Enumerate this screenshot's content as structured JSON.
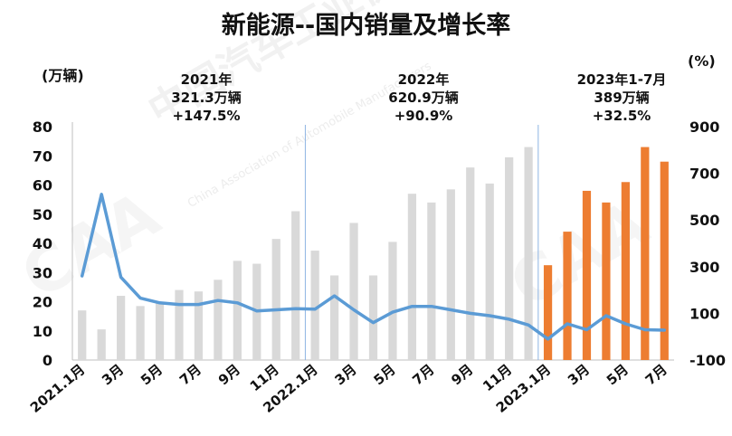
{
  "chart_data": {
    "type": "bar+line",
    "title": "新能源--国内销量及增长率",
    "y_left_unit": "(万辆)",
    "y_right_unit": "(%)",
    "y_left_ticks": [
      "80",
      "70",
      "60",
      "50",
      "40",
      "30",
      "20",
      "10",
      "0"
    ],
    "y_right_ticks": [
      "900",
      "700",
      "500",
      "300",
      "100",
      "-100"
    ],
    "ylim_left": [
      0,
      80
    ],
    "ylim_right": [
      -100,
      900
    ],
    "x_tick_labels": [
      "2021.1月",
      "3月",
      "5月",
      "7月",
      "9月",
      "11月",
      "2022.1月",
      "3月",
      "5月",
      "7月",
      "9月",
      "11月",
      "2023.1月",
      "3月",
      "5月",
      "7月"
    ],
    "series": [
      {
        "name": "",
        "type": "bar",
        "color": "#d9d9d9",
        "values": [
          17,
          10.5,
          22,
          18.5,
          19.5,
          24,
          23.5,
          27.5,
          34,
          33,
          41.5,
          51,
          37.5,
          29,
          47,
          29,
          40.5,
          57,
          54,
          58.5,
          66,
          60.5,
          69.5,
          73
        ]
      },
      {
        "name": "",
        "type": "bar",
        "color": "#ed7d31",
        "values": [
          32.5,
          44,
          58,
          54,
          61,
          73,
          68
        ]
      },
      {
        "name": "",
        "type": "line",
        "color": "#5b9bd5",
        "values": [
          260,
          610,
          255,
          165,
          145,
          138,
          138,
          155,
          145,
          110,
          115,
          120,
          118,
          175,
          115,
          60,
          105,
          130,
          130,
          115,
          100,
          90,
          75,
          50,
          -10,
          55,
          30,
          90,
          55,
          30,
          28
        ]
      }
    ],
    "annotations": [
      {
        "lines": [
          "2021年",
          "321.3万辆",
          "+147.5%"
        ]
      },
      {
        "lines": [
          "2022年",
          "620.9万辆",
          "+90.9%"
        ]
      },
      {
        "lines": [
          "2023年1-7月",
          "389万辆",
          "+32.5%"
        ]
      }
    ]
  },
  "watermark": {
    "text": "中国汽车工业协会",
    "subtext": "China Association of Automobile Manufacturers",
    "logo": "CAAM"
  }
}
